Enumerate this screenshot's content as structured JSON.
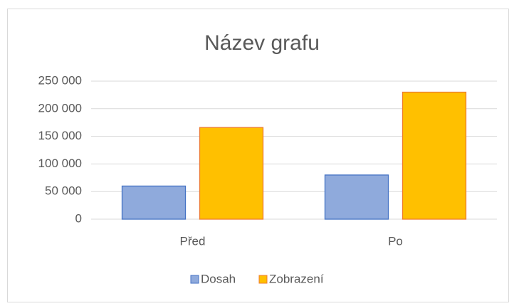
{
  "chart_data": {
    "type": "bar",
    "title": "Název grafu",
    "categories": [
      "Před",
      "Po"
    ],
    "series": [
      {
        "name": "Dosah",
        "color": "#8faadc",
        "edge_color": "#4472c4",
        "values": [
          60000,
          80000
        ]
      },
      {
        "name": "Zobrazení",
        "color": "#ffc000",
        "edge_color": "#ed7d31",
        "values": [
          166000,
          230000
        ]
      }
    ],
    "ylim": [
      0,
      250000
    ],
    "yticks": [
      0,
      {
        "value": 50000,
        "label": "50 000"
      },
      {
        "value": 100000,
        "label": "100 000"
      },
      {
        "value": 150000,
        "label": "150 000"
      },
      {
        "value": 200000,
        "label": "200 000"
      },
      {
        "value": 250000,
        "label": "250 000"
      }
    ],
    "grid": true,
    "legend": "bottom"
  }
}
